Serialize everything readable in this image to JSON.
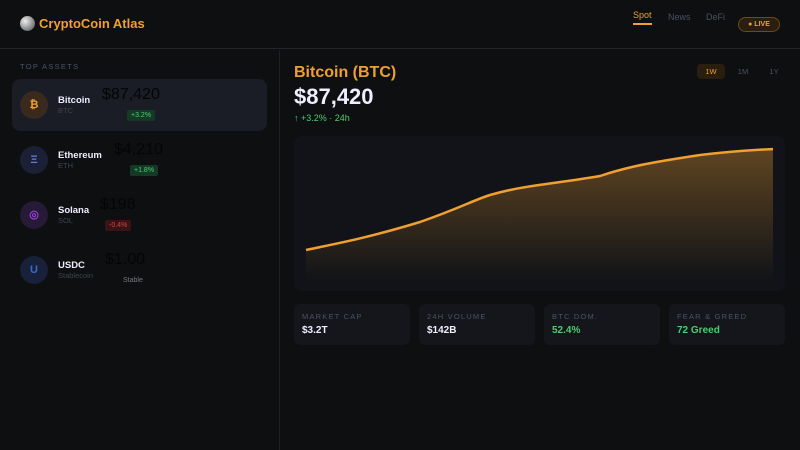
{
  "app": {
    "title": "CryptoCoin Atlas"
  },
  "nav": {
    "tabs": [
      {
        "label": "Spot",
        "active": true
      },
      {
        "label": "News"
      },
      {
        "label": "DeFi"
      }
    ],
    "live": "● LIVE"
  },
  "sidebar": {
    "section": "TOP ASSETS",
    "assets": [
      {
        "name": "Bitcoin",
        "symbol": "BTC",
        "glyph": "₿",
        "price": "$87,420",
        "change": "+3.2%",
        "selected": true
      },
      {
        "name": "Ethereum",
        "symbol": "ETH",
        "glyph": "Ξ",
        "price": "$4,210",
        "change": "+1.8%"
      },
      {
        "name": "Solana",
        "symbol": "SOL",
        "glyph": "◎",
        "price": "$198",
        "change": "-0.4%"
      },
      {
        "name": "USDC",
        "symbol": "Stablecoin",
        "glyph": "U",
        "price": "$1.00",
        "change": "Stable"
      }
    ]
  },
  "main": {
    "title": "Bitcoin (BTC)",
    "price": "$87,420",
    "change": "↑ +3.2% · 24h",
    "ranges": [
      {
        "label": "1W",
        "active": true
      },
      {
        "label": "1M"
      },
      {
        "label": "1Y"
      }
    ],
    "stats": [
      {
        "label": "MARKET CAP",
        "value": "$3.2T"
      },
      {
        "label": "24H VOLUME",
        "value": "$142B"
      },
      {
        "label": "BTC DOM.",
        "value": "52.4%"
      },
      {
        "label": "FEAR & GREED",
        "value": "72 Greed"
      }
    ]
  },
  "colors": {
    "accent": "#f0a030",
    "positive": "#4ccd6f",
    "negative": "#d24545"
  }
}
